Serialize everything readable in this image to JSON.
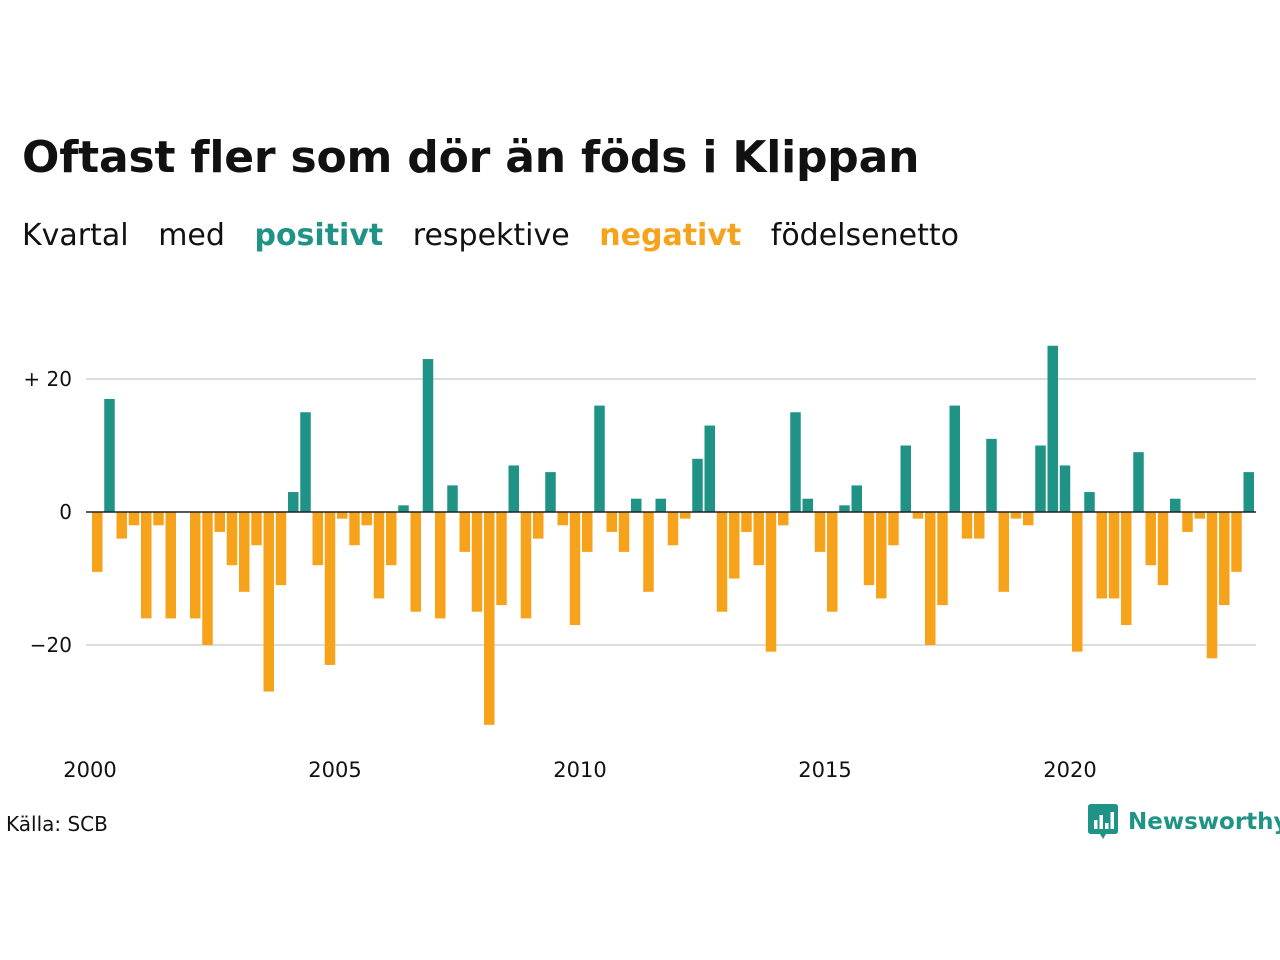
{
  "title": "Oftast fler som dör än föds i Klippan",
  "subtitle": {
    "w1": "Kvartal",
    "w2": "med",
    "w3": "positivt",
    "w4": "respektive",
    "w5": "negativt",
    "w6": "födelsenetto"
  },
  "source": "Källa: SCB",
  "brand": {
    "name": "Newsworthy",
    "icon": "newsworthy-logo-icon"
  },
  "colors": {
    "positive": "#1f9486",
    "negative": "#f7a21b",
    "grid": "#dddddd",
    "text": "#111111",
    "brand": "#1f9486"
  },
  "chart_data": {
    "type": "bar",
    "x_start": "2000Q1",
    "x_end": "2023Q4",
    "x_ticks": [
      "2000",
      "2005",
      "2010",
      "2015",
      "2020"
    ],
    "y_ticks": [
      "+ 20",
      "0",
      "−20"
    ],
    "y_tick_values": [
      20,
      0,
      -20
    ],
    "ylim": [
      -32,
      25
    ],
    "grid": true,
    "values": [
      -9,
      17,
      -4,
      -2,
      -16,
      -2,
      -16,
      0,
      -16,
      -20,
      -3,
      -8,
      -12,
      -5,
      -27,
      -11,
      3,
      15,
      -8,
      -23,
      -1,
      -5,
      -2,
      -13,
      -8,
      1,
      -15,
      23,
      -16,
      4,
      -6,
      -15,
      -32,
      -14,
      7,
      -16,
      -4,
      6,
      -2,
      -17,
      -6,
      16,
      -3,
      -6,
      2,
      -12,
      2,
      -5,
      -1,
      8,
      13,
      -15,
      -10,
      -3,
      -8,
      -21,
      -2,
      15,
      2,
      -6,
      -15,
      1,
      4,
      -11,
      -13,
      -5,
      10,
      -1,
      -20,
      -14,
      16,
      -4,
      -4,
      11,
      -12,
      -1,
      -2,
      10,
      25,
      7,
      -21,
      3,
      -13,
      -13,
      -17,
      9,
      -8,
      -11,
      2,
      -3,
      -1,
      -22,
      -14,
      -9,
      6,
      0
    ]
  }
}
